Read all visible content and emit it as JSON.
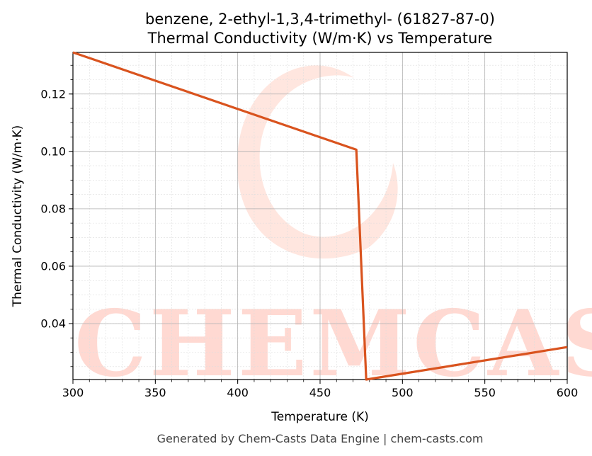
{
  "chart_data": {
    "type": "line",
    "title_line1": "benzene, 2-ethyl-1,3,4-trimethyl- (61827-87-0)",
    "title_line2": "Thermal Conductivity (W/m·K) vs Temperature",
    "xlabel": "Temperature (K)",
    "ylabel": "Thermal Conductivity (W/m·K)",
    "xlim": [
      300,
      600
    ],
    "ylim": [
      0.0205,
      0.1345
    ],
    "xticks": [
      300,
      350,
      400,
      450,
      500,
      550,
      600
    ],
    "xtick_labels": [
      "300",
      "350",
      "400",
      "450",
      "500",
      "550",
      "600"
    ],
    "yticks": [
      0.04,
      0.06,
      0.08,
      0.1,
      0.12
    ],
    "ytick_labels": [
      "0.04",
      "0.06",
      "0.08",
      "0.10",
      "0.12"
    ],
    "grid": true,
    "series": [
      {
        "color": "#d9531e",
        "x": [
          300,
          472,
          478,
          600
        ],
        "y": [
          0.1345,
          0.1006,
          0.0205,
          0.0318
        ]
      }
    ]
  },
  "watermark": "CHEMCASTS",
  "footer": "Generated by Chem-Casts Data Engine | chem-casts.com"
}
